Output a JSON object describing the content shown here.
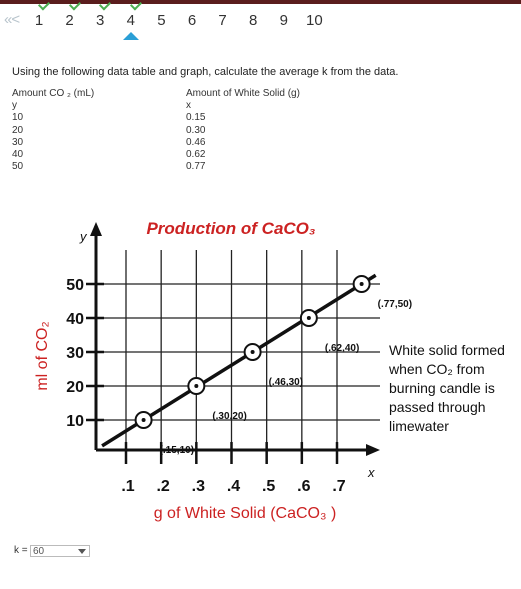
{
  "nav": {
    "prev_icon": "double-chevron-left",
    "pages": [
      {
        "label": "1",
        "done": true
      },
      {
        "label": "2",
        "done": true
      },
      {
        "label": "3",
        "done": true
      },
      {
        "label": "4",
        "done": true,
        "current": true
      },
      {
        "label": "5",
        "done": false
      },
      {
        "label": "6",
        "done": false
      },
      {
        "label": "7",
        "done": false
      },
      {
        "label": "8",
        "done": false
      },
      {
        "label": "9",
        "done": false
      },
      {
        "label": "10",
        "done": false
      }
    ],
    "check_color": "#4caf50",
    "current_marker_color": "#2a9fd6"
  },
  "question": {
    "instruction": "Using the following data table and graph, calculate the average k from the data.",
    "col_a_header": "Amount CO ₂ (mL)",
    "col_b_header": "Amount of White Solid (g)",
    "col_a_var": "y",
    "col_b_var": "x",
    "rows": [
      {
        "a": "10",
        "b": "0.15"
      },
      {
        "a": "20",
        "b": "0.30"
      },
      {
        "a": "30",
        "b": "0.46"
      },
      {
        "a": "40",
        "b": "0.62"
      },
      {
        "a": "50",
        "b": "0.77"
      }
    ]
  },
  "chart_data": {
    "type": "line",
    "title": "Production of CaCO₃",
    "title_color": "#cc2222",
    "xlabel": "g of White Solid (CaCO₃ )",
    "ylabel": "ml of CO₂",
    "axis_label_color": "#cc2222",
    "x_axis_letter": "x",
    "y_axis_letter": "y",
    "x_ticks": [
      ".1",
      ".2",
      ".3",
      ".4",
      ".5",
      ".6",
      ".7"
    ],
    "y_ticks": [
      "10",
      "20",
      "30",
      "40",
      "50"
    ],
    "xlim": [
      0,
      0.8
    ],
    "ylim": [
      0,
      58
    ],
    "grid": true,
    "points": [
      {
        "x": 0.15,
        "y": 10,
        "label": "(.15,10)"
      },
      {
        "x": 0.3,
        "y": 20,
        "label": "(.30,20)"
      },
      {
        "x": 0.46,
        "y": 30,
        "label": "(.46,30)"
      },
      {
        "x": 0.62,
        "y": 40,
        "label": "(.62,40)"
      },
      {
        "x": 0.77,
        "y": 50,
        "label": "(.77,50)"
      }
    ],
    "annotation": [
      "White solid formed",
      "when CO₂ from",
      "burning candle is",
      "passed through",
      "limewater"
    ]
  },
  "answer": {
    "label": "k =",
    "selected": "60"
  }
}
